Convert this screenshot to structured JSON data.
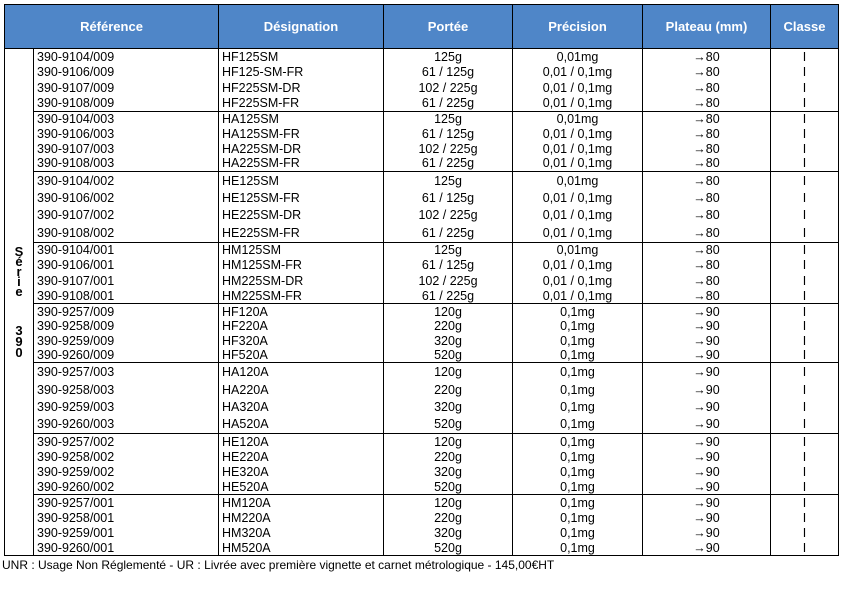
{
  "header": {
    "columns": [
      "Référence",
      "Désignation",
      "Portée",
      "Précision",
      "Plateau (mm)",
      "Classe"
    ]
  },
  "series_label": {
    "word": "Série",
    "number": "390"
  },
  "groups": [
    {
      "rows": [
        {
          "ref": "390-9104/009",
          "des": "HF125SM",
          "portee": "125g",
          "precision": "0,01mg",
          "plateau": "→80",
          "classe": "I"
        },
        {
          "ref": "390-9106/009",
          "des": "HF125-SM-FR",
          "portee": "61 / 125g",
          "precision": "0,01 / 0,1mg",
          "plateau": "→80",
          "classe": "I"
        },
        {
          "ref": "390-9107/009",
          "des": "HF225SM-DR",
          "portee": "102 / 225g",
          "precision": "0,01 / 0,1mg",
          "plateau": "→80",
          "classe": "I"
        },
        {
          "ref": "390-9108/009",
          "des": "HF225SM-FR",
          "portee": "61 / 225g",
          "precision": "0,01 / 0,1mg",
          "plateau": "→80",
          "classe": "I"
        }
      ]
    },
    {
      "rows": [
        {
          "ref": "390-9104/003",
          "des": "HA125SM",
          "portee": "125g",
          "precision": "0,01mg",
          "plateau": "→80",
          "classe": "I"
        },
        {
          "ref": "390-9106/003",
          "des": "HA125SM-FR",
          "portee": "61 / 125g",
          "precision": "0,01 / 0,1mg",
          "plateau": "→80",
          "classe": "I"
        },
        {
          "ref": "390-9107/003",
          "des": "HA225SM-DR",
          "portee": "102 / 225g",
          "precision": "0,01 / 0,1mg",
          "plateau": "→80",
          "classe": "I"
        },
        {
          "ref": "390-9108/003",
          "des": "HA225SM-FR",
          "portee": "61 / 225g",
          "precision": "0,01 / 0,1mg",
          "plateau": "→80",
          "classe": "I"
        }
      ]
    },
    {
      "rows": [
        {
          "ref": "390-9104/002",
          "des": "HE125SM",
          "portee": "125g",
          "precision": "0,01mg",
          "plateau": "→80",
          "classe": "I"
        },
        {
          "ref": "390-9106/002",
          "des": "HE125SM-FR",
          "portee": "61 / 125g",
          "precision": "0,01 / 0,1mg",
          "plateau": "→80",
          "classe": "I"
        },
        {
          "ref": "390-9107/002",
          "des": "HE225SM-DR",
          "portee": "102 / 225g",
          "precision": "0,01 / 0,1mg",
          "plateau": "→80",
          "classe": "I"
        },
        {
          "ref": "390-9108/002",
          "des": "HE225SM-FR",
          "portee": "61 / 225g",
          "precision": "0,01 / 0,1mg",
          "plateau": "→80",
          "classe": "I"
        }
      ]
    },
    {
      "rows": [
        {
          "ref": "390-9104/001",
          "des": "HM125SM",
          "portee": "125g",
          "precision": "0,01mg",
          "plateau": "→80",
          "classe": "I"
        },
        {
          "ref": "390-9106/001",
          "des": "HM125SM-FR",
          "portee": "61 / 125g",
          "precision": "0,01 / 0,1mg",
          "plateau": "→80",
          "classe": "I"
        },
        {
          "ref": "390-9107/001",
          "des": "HM225SM-DR",
          "portee": "102 / 225g",
          "precision": "0,01 / 0,1mg",
          "plateau": "→80",
          "classe": "I"
        },
        {
          "ref": "390-9108/001",
          "des": "HM225SM-FR",
          "portee": "61 / 225g",
          "precision": "0,01 / 0,1mg",
          "plateau": "→80",
          "classe": "I"
        }
      ]
    },
    {
      "rows": [
        {
          "ref": "390-9257/009",
          "des": "HF120A",
          "portee": "120g",
          "precision": "0,1mg",
          "plateau": "→90",
          "classe": "I"
        },
        {
          "ref": "390-9258/009",
          "des": "HF220A",
          "portee": "220g",
          "precision": "0,1mg",
          "plateau": "→90",
          "classe": "I"
        },
        {
          "ref": "390-9259/009",
          "des": "HF320A",
          "portee": "320g",
          "precision": "0,1mg",
          "plateau": "→90",
          "classe": "I"
        },
        {
          "ref": "390-9260/009",
          "des": "HF520A",
          "portee": "520g",
          "precision": "0,1mg",
          "plateau": "→90",
          "classe": "I"
        }
      ]
    },
    {
      "rows": [
        {
          "ref": "390-9257/003",
          "des": "HA120A",
          "portee": "120g",
          "precision": "0,1mg",
          "plateau": "→90",
          "classe": "I"
        },
        {
          "ref": "390-9258/003",
          "des": "HA220A",
          "portee": "220g",
          "precision": "0,1mg",
          "plateau": "→90",
          "classe": "I"
        },
        {
          "ref": "390-9259/003",
          "des": "HA320A",
          "portee": "320g",
          "precision": "0,1mg",
          "plateau": "→90",
          "classe": "I"
        },
        {
          "ref": "390-9260/003",
          "des": "HA520A",
          "portee": "520g",
          "precision": "0,1mg",
          "plateau": "→90",
          "classe": "I"
        }
      ]
    },
    {
      "rows": [
        {
          "ref": "390-9257/002",
          "des": "HE120A",
          "portee": "120g",
          "precision": "0,1mg",
          "plateau": "→90",
          "classe": "I"
        },
        {
          "ref": "390-9258/002",
          "des": "HE220A",
          "portee": "220g",
          "precision": "0,1mg",
          "plateau": "→90",
          "classe": "I"
        },
        {
          "ref": "390-9259/002",
          "des": "HE320A",
          "portee": "320g",
          "precision": "0,1mg",
          "plateau": "→90",
          "classe": "I"
        },
        {
          "ref": "390-9260/002",
          "des": "HE520A",
          "portee": "520g",
          "precision": "0,1mg",
          "plateau": "→90",
          "classe": "I"
        }
      ]
    },
    {
      "rows": [
        {
          "ref": "390-9257/001",
          "des": "HM120A",
          "portee": "120g",
          "precision": "0,1mg",
          "plateau": "→90",
          "classe": "I"
        },
        {
          "ref": "390-9258/001",
          "des": "HM220A",
          "portee": "220g",
          "precision": "0,1mg",
          "plateau": "→90",
          "classe": "I"
        },
        {
          "ref": "390-9259/001",
          "des": "HM320A",
          "portee": "320g",
          "precision": "0,1mg",
          "plateau": "→90",
          "classe": "I"
        },
        {
          "ref": "390-9260/001",
          "des": "HM520A",
          "portee": "520g",
          "precision": "0,1mg",
          "plateau": "→90",
          "classe": "I"
        }
      ]
    }
  ],
  "footer": {
    "note": "UNR : Usage Non Réglementé - UR : Livrée avec première vignette et carnet métrologique - 145,00€HT"
  },
  "colors": {
    "header_bg": "#4f86c8",
    "header_text": "#ffffff",
    "border": "#000000"
  }
}
